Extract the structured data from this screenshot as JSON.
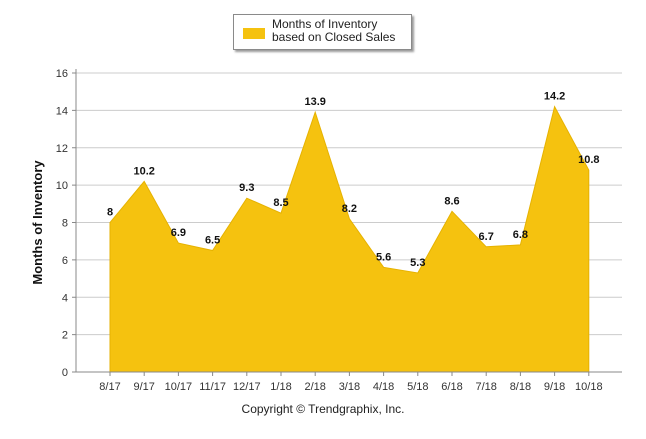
{
  "chart_data": {
    "type": "area",
    "categories": [
      "8/17",
      "9/17",
      "10/17",
      "11/17",
      "12/17",
      "1/18",
      "2/18",
      "3/18",
      "4/18",
      "5/18",
      "6/18",
      "7/18",
      "8/18",
      "9/18",
      "10/18"
    ],
    "series": [
      {
        "name": "Months of Inventory based on Closed Sales",
        "values": [
          8,
          10.2,
          6.9,
          6.5,
          9.3,
          8.5,
          13.9,
          8.2,
          5.6,
          5.3,
          8.6,
          6.7,
          6.8,
          14.2,
          10.8
        ],
        "labels": [
          "8",
          "10.2",
          "6.9",
          "6.5",
          "9.3",
          "8.5",
          "13.9",
          "8.2",
          "5.6",
          "5.3",
          "8.6",
          "6.7",
          "6.8",
          "14.2",
          "10.8"
        ]
      }
    ],
    "ylabel": "Months of Inventory",
    "xlabel": "",
    "ylim": [
      0,
      16
    ],
    "yticks": [
      "0",
      "2",
      "4",
      "6",
      "8",
      "10",
      "12",
      "14",
      "16"
    ],
    "grid": true,
    "legend_position": "top",
    "colors": {
      "fill": "#f5c20f",
      "grid": "#cccccc",
      "axis": "#888888"
    }
  },
  "legend": {
    "label": "Months of Inventory based on Closed Sales"
  },
  "footer": {
    "copyright": "Copyright © Trendgraphix, Inc."
  }
}
